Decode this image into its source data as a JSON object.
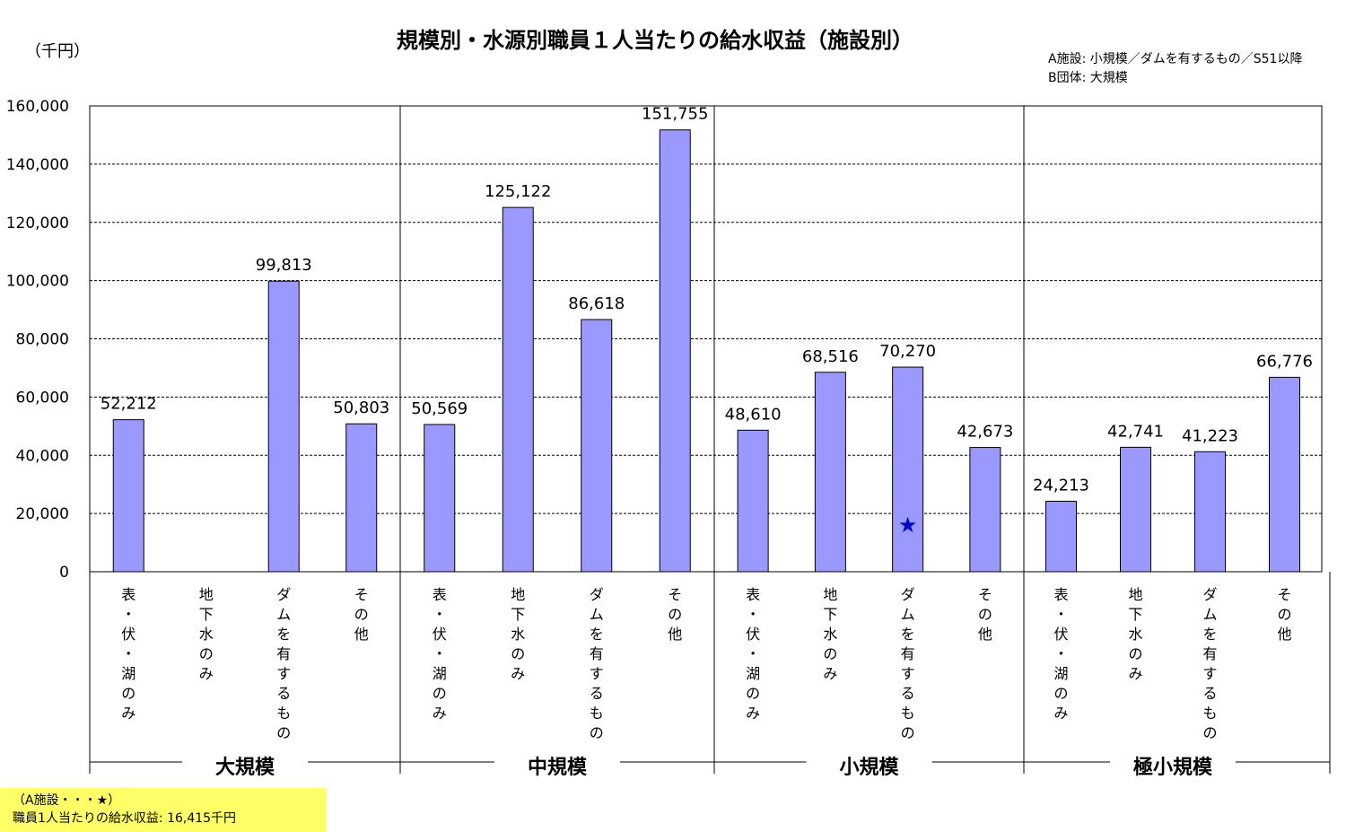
{
  "chart_data": {
    "type": "bar",
    "title": "規模別・水源別職員１人当たりの給水収益（施設別）",
    "unit_label": "（千円）",
    "ylim": [
      0,
      160000
    ],
    "yticks": [
      0,
      20000,
      40000,
      60000,
      80000,
      100000,
      120000,
      140000,
      160000
    ],
    "ytick_labels": [
      "0",
      "20,000",
      "40,000",
      "60,000",
      "80,000",
      "100,000",
      "120,000",
      "140,000",
      "160,000"
    ],
    "grid": true,
    "bar_color": "#9999ff",
    "groups": [
      {
        "name": "大規模",
        "categories": [
          "表・伏・湖のみ",
          "地下水のみ",
          "ダムを有するもの",
          "その他"
        ],
        "values": [
          52212,
          null,
          99813,
          50803
        ],
        "labels": [
          "52,212",
          "",
          "99,813",
          "50,803"
        ]
      },
      {
        "name": "中規模",
        "categories": [
          "表・伏・湖のみ",
          "地下水のみ",
          "ダムを有するもの",
          "その他"
        ],
        "values": [
          50569,
          125122,
          86618,
          151755
        ],
        "labels": [
          "50,569",
          "125,122",
          "86,618",
          "151,755"
        ]
      },
      {
        "name": "小規模",
        "categories": [
          "表・伏・湖のみ",
          "地下水のみ",
          "ダムを有するもの",
          "その他"
        ],
        "values": [
          48610,
          68516,
          70270,
          42673
        ],
        "labels": [
          "48,610",
          "68,516",
          "70,270",
          "42,673"
        ]
      },
      {
        "name": "極小規模",
        "categories": [
          "表・伏・湖のみ",
          "地下水のみ",
          "ダムを有するもの",
          "その他"
        ],
        "values": [
          24213,
          42741,
          41223,
          66776
        ],
        "labels": [
          "24,213",
          "42,741",
          "41,223",
          "66,776"
        ]
      }
    ],
    "marker": {
      "symbol": "★",
      "group": "小規模",
      "category": "ダムを有するもの",
      "value": 16415,
      "color": "#0000cc"
    }
  },
  "notes": [
    "A施設: 小規模／ダムを有するもの／S51以降",
    "B団体: 大規模"
  ],
  "footnote": {
    "line1": "（A施設・・・★）",
    "line2": "職員1人当たりの給水収益: 16,415千円"
  }
}
